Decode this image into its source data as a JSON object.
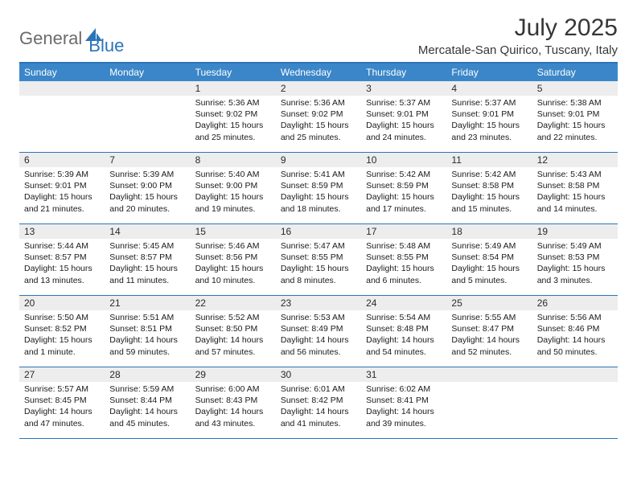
{
  "logo": {
    "text_general": "General",
    "text_blue": "Blue",
    "shape_color": "#2b74b8"
  },
  "title": "July 2025",
  "location": "Mercatale-San Quirico, Tuscany, Italy",
  "colors": {
    "header_bg": "#3b86c8",
    "header_border": "#2b74b8",
    "daynum_bg": "#ededed",
    "text": "#1a1a1a",
    "title_text": "#363636"
  },
  "weekdays": [
    "Sunday",
    "Monday",
    "Tuesday",
    "Wednesday",
    "Thursday",
    "Friday",
    "Saturday"
  ],
  "weeks": [
    [
      {
        "n": "",
        "lines": []
      },
      {
        "n": "",
        "lines": []
      },
      {
        "n": "1",
        "lines": [
          "Sunrise: 5:36 AM",
          "Sunset: 9:02 PM",
          "Daylight: 15 hours",
          "and 25 minutes."
        ]
      },
      {
        "n": "2",
        "lines": [
          "Sunrise: 5:36 AM",
          "Sunset: 9:02 PM",
          "Daylight: 15 hours",
          "and 25 minutes."
        ]
      },
      {
        "n": "3",
        "lines": [
          "Sunrise: 5:37 AM",
          "Sunset: 9:01 PM",
          "Daylight: 15 hours",
          "and 24 minutes."
        ]
      },
      {
        "n": "4",
        "lines": [
          "Sunrise: 5:37 AM",
          "Sunset: 9:01 PM",
          "Daylight: 15 hours",
          "and 23 minutes."
        ]
      },
      {
        "n": "5",
        "lines": [
          "Sunrise: 5:38 AM",
          "Sunset: 9:01 PM",
          "Daylight: 15 hours",
          "and 22 minutes."
        ]
      }
    ],
    [
      {
        "n": "6",
        "lines": [
          "Sunrise: 5:39 AM",
          "Sunset: 9:01 PM",
          "Daylight: 15 hours",
          "and 21 minutes."
        ]
      },
      {
        "n": "7",
        "lines": [
          "Sunrise: 5:39 AM",
          "Sunset: 9:00 PM",
          "Daylight: 15 hours",
          "and 20 minutes."
        ]
      },
      {
        "n": "8",
        "lines": [
          "Sunrise: 5:40 AM",
          "Sunset: 9:00 PM",
          "Daylight: 15 hours",
          "and 19 minutes."
        ]
      },
      {
        "n": "9",
        "lines": [
          "Sunrise: 5:41 AM",
          "Sunset: 8:59 PM",
          "Daylight: 15 hours",
          "and 18 minutes."
        ]
      },
      {
        "n": "10",
        "lines": [
          "Sunrise: 5:42 AM",
          "Sunset: 8:59 PM",
          "Daylight: 15 hours",
          "and 17 minutes."
        ]
      },
      {
        "n": "11",
        "lines": [
          "Sunrise: 5:42 AM",
          "Sunset: 8:58 PM",
          "Daylight: 15 hours",
          "and 15 minutes."
        ]
      },
      {
        "n": "12",
        "lines": [
          "Sunrise: 5:43 AM",
          "Sunset: 8:58 PM",
          "Daylight: 15 hours",
          "and 14 minutes."
        ]
      }
    ],
    [
      {
        "n": "13",
        "lines": [
          "Sunrise: 5:44 AM",
          "Sunset: 8:57 PM",
          "Daylight: 15 hours",
          "and 13 minutes."
        ]
      },
      {
        "n": "14",
        "lines": [
          "Sunrise: 5:45 AM",
          "Sunset: 8:57 PM",
          "Daylight: 15 hours",
          "and 11 minutes."
        ]
      },
      {
        "n": "15",
        "lines": [
          "Sunrise: 5:46 AM",
          "Sunset: 8:56 PM",
          "Daylight: 15 hours",
          "and 10 minutes."
        ]
      },
      {
        "n": "16",
        "lines": [
          "Sunrise: 5:47 AM",
          "Sunset: 8:55 PM",
          "Daylight: 15 hours",
          "and 8 minutes."
        ]
      },
      {
        "n": "17",
        "lines": [
          "Sunrise: 5:48 AM",
          "Sunset: 8:55 PM",
          "Daylight: 15 hours",
          "and 6 minutes."
        ]
      },
      {
        "n": "18",
        "lines": [
          "Sunrise: 5:49 AM",
          "Sunset: 8:54 PM",
          "Daylight: 15 hours",
          "and 5 minutes."
        ]
      },
      {
        "n": "19",
        "lines": [
          "Sunrise: 5:49 AM",
          "Sunset: 8:53 PM",
          "Daylight: 15 hours",
          "and 3 minutes."
        ]
      }
    ],
    [
      {
        "n": "20",
        "lines": [
          "Sunrise: 5:50 AM",
          "Sunset: 8:52 PM",
          "Daylight: 15 hours",
          "and 1 minute."
        ]
      },
      {
        "n": "21",
        "lines": [
          "Sunrise: 5:51 AM",
          "Sunset: 8:51 PM",
          "Daylight: 14 hours",
          "and 59 minutes."
        ]
      },
      {
        "n": "22",
        "lines": [
          "Sunrise: 5:52 AM",
          "Sunset: 8:50 PM",
          "Daylight: 14 hours",
          "and 57 minutes."
        ]
      },
      {
        "n": "23",
        "lines": [
          "Sunrise: 5:53 AM",
          "Sunset: 8:49 PM",
          "Daylight: 14 hours",
          "and 56 minutes."
        ]
      },
      {
        "n": "24",
        "lines": [
          "Sunrise: 5:54 AM",
          "Sunset: 8:48 PM",
          "Daylight: 14 hours",
          "and 54 minutes."
        ]
      },
      {
        "n": "25",
        "lines": [
          "Sunrise: 5:55 AM",
          "Sunset: 8:47 PM",
          "Daylight: 14 hours",
          "and 52 minutes."
        ]
      },
      {
        "n": "26",
        "lines": [
          "Sunrise: 5:56 AM",
          "Sunset: 8:46 PM",
          "Daylight: 14 hours",
          "and 50 minutes."
        ]
      }
    ],
    [
      {
        "n": "27",
        "lines": [
          "Sunrise: 5:57 AM",
          "Sunset: 8:45 PM",
          "Daylight: 14 hours",
          "and 47 minutes."
        ]
      },
      {
        "n": "28",
        "lines": [
          "Sunrise: 5:59 AM",
          "Sunset: 8:44 PM",
          "Daylight: 14 hours",
          "and 45 minutes."
        ]
      },
      {
        "n": "29",
        "lines": [
          "Sunrise: 6:00 AM",
          "Sunset: 8:43 PM",
          "Daylight: 14 hours",
          "and 43 minutes."
        ]
      },
      {
        "n": "30",
        "lines": [
          "Sunrise: 6:01 AM",
          "Sunset: 8:42 PM",
          "Daylight: 14 hours",
          "and 41 minutes."
        ]
      },
      {
        "n": "31",
        "lines": [
          "Sunrise: 6:02 AM",
          "Sunset: 8:41 PM",
          "Daylight: 14 hours",
          "and 39 minutes."
        ]
      },
      {
        "n": "",
        "lines": []
      },
      {
        "n": "",
        "lines": []
      }
    ]
  ]
}
